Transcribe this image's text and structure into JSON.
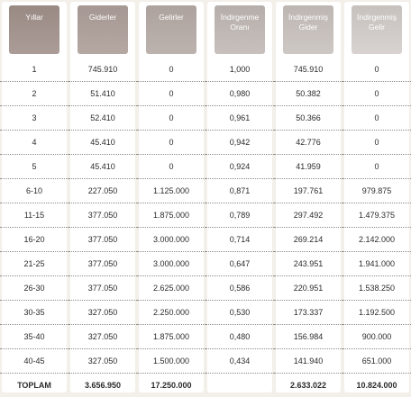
{
  "headers": [
    "Yıllar",
    "Giderler",
    "Gelirler",
    "İndirgenme\nOranı",
    "İndirgenmiş\nGider",
    "İndirgenmiş\nGelir"
  ],
  "rows": [
    [
      "1",
      "745.910",
      "0",
      "1,000",
      "745.910",
      "0"
    ],
    [
      "2",
      "51.410",
      "0",
      "0,980",
      "50.382",
      "0"
    ],
    [
      "3",
      "52.410",
      "0",
      "0,961",
      "50.366",
      "0"
    ],
    [
      "4",
      "45.410",
      "0",
      "0,942",
      "42.776",
      "0"
    ],
    [
      "5",
      "45.410",
      "0",
      "0,924",
      "41.959",
      "0"
    ],
    [
      "6-10",
      "227.050",
      "1.125.000",
      "0,871",
      "197.761",
      "979.875"
    ],
    [
      "11-15",
      "377.050",
      "1.875.000",
      "0,789",
      "297.492",
      "1.479.375"
    ],
    [
      "16-20",
      "377.050",
      "3.000.000",
      "0,714",
      "269.214",
      "2.142.000"
    ],
    [
      "21-25",
      "377.050",
      "3.000.000",
      "0,647",
      "243.951",
      "1.941.000"
    ],
    [
      "26-30",
      "377.050",
      "2.625.000",
      "0,586",
      "220.951",
      "1.538.250"
    ],
    [
      "30-35",
      "327.050",
      "2.250.000",
      "0,530",
      "173.337",
      "1.192.500"
    ],
    [
      "35-40",
      "327.050",
      "1.875.000",
      "0,480",
      "156.984",
      "900.000"
    ],
    [
      "40-45",
      "327.050",
      "1.500.000",
      "0,434",
      "141.940",
      "651.000"
    ]
  ],
  "total": [
    "TOPLAM",
    "3.656.950",
    "17.250.000",
    "",
    "2.633.022",
    "10.824.000"
  ],
  "colors": {
    "background": "#f3f0ea",
    "card": "#ffffff",
    "header_dark": "#9a8a84",
    "header_light": "#c7c1be"
  }
}
